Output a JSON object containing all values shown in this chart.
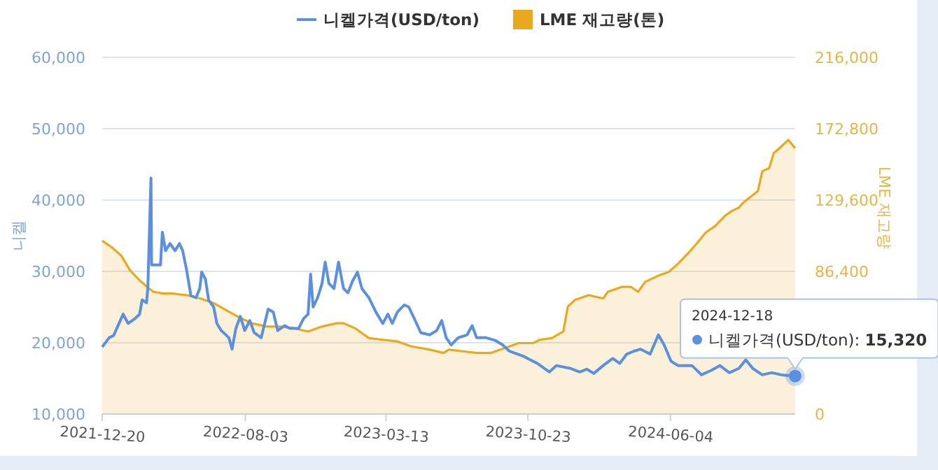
{
  "chart_data": {
    "type": "line",
    "ylabel": "니켈",
    "y2label": "LME 재고량",
    "legend": "top",
    "grid": "y",
    "xlim": [
      "2021-12-20",
      "2024-12-18"
    ],
    "xticks": [
      "2021-12-20",
      "2022-08-03",
      "2023-03-13",
      "2023-10-23",
      "2024-06-04"
    ],
    "ylim": [
      10000,
      60000
    ],
    "yticks": [
      {
        "value": 10000,
        "label": "10,000"
      },
      {
        "value": 20000,
        "label": "20,000"
      },
      {
        "value": 30000,
        "label": "30,000"
      },
      {
        "value": 40000,
        "label": "40,000"
      },
      {
        "value": 50000,
        "label": "50,000"
      },
      {
        "value": 60000,
        "label": "60,000"
      }
    ],
    "y2lim": [
      0,
      216000
    ],
    "y2ticks": [
      0,
      {
        "value": 43200,
        "label": null
      },
      {
        "value": 86400,
        "label": "86,400"
      },
      {
        "value": 129600,
        "label": "129,600"
      },
      {
        "value": 172800,
        "label": "172,800"
      },
      {
        "value": 216000,
        "label": "216,000"
      }
    ],
    "annotations": [
      "2024-12-18",
      {
        "text": "니켈가격(USD/ton): **15,320**",
        "x": "2024-12-18",
        "y": 15320
      }
    ],
    "series": [
      {
        "name": "니켈가격(USD/ton)",
        "color": "#5b8fe0",
        "x": [
          "2021-12-20",
          "2021-12-31",
          "2022-01-07",
          "2022-01-19",
          "2022-01-22",
          "2022-01-30",
          "2022-02-10",
          "2022-02-17",
          "2022-02-21",
          "2022-02-28",
          "2022-03-02",
          "2022-03-07",
          "2022-03-08",
          "2022-03-22",
          "2022-03-25",
          "2022-03-30",
          "2022-04-06",
          "2022-04-14",
          "2022-04-21",
          "2022-04-26",
          "2022-05-02",
          "2022-05-09",
          "2022-05-17",
          "2022-05-23",
          "2022-05-26",
          "2022-06-01",
          "2022-06-06",
          "2022-06-14",
          "2022-06-19",
          "2022-06-26",
          "2022-07-08",
          "2022-07-13",
          "2022-07-19",
          "2022-07-26",
          "2022-08-02",
          "2022-08-10",
          "2022-08-17",
          "2022-08-28",
          "2022-09-08",
          "2022-09-16",
          "2022-09-23",
          "2022-10-04",
          "2022-10-12",
          "2022-10-26",
          "2022-11-03",
          "2022-11-10",
          "2022-11-14",
          "2022-11-18",
          "2022-11-25",
          "2022-12-02",
          "2022-12-07",
          "2022-12-13",
          "2022-12-21",
          "2022-12-28",
          "2023-01-05",
          "2023-01-12",
          "2023-01-19",
          "2023-01-27",
          "2023-02-03",
          "2023-02-14",
          "2023-02-25",
          "2023-03-08",
          "2023-03-16",
          "2023-03-23",
          "2023-03-31",
          "2023-04-11",
          "2023-04-18",
          "2023-04-25",
          "2023-05-07",
          "2023-05-21",
          "2023-06-01",
          "2023-06-09",
          "2023-06-16",
          "2023-06-24",
          "2023-07-05",
          "2023-07-19",
          "2023-07-27",
          "2023-08-03",
          "2023-08-18",
          "2023-09-02",
          "2023-09-13",
          "2023-09-24",
          "2023-10-16",
          "2023-11-07",
          "2023-11-26",
          "2023-12-07",
          "2023-12-29",
          "2024-01-13",
          "2024-01-24",
          "2024-02-04",
          "2024-02-19",
          "2024-03-05",
          "2024-03-16",
          "2024-03-27",
          "2024-04-07",
          "2024-04-18",
          "2024-05-03",
          "2024-05-16",
          "2024-05-25",
          "2024-06-05",
          "2024-06-16",
          "2024-07-08",
          "2024-07-23",
          "2024-08-07",
          "2024-08-21",
          "2024-09-05",
          "2024-09-20",
          "2024-10-01",
          "2024-10-12",
          "2024-10-27",
          "2024-11-11",
          "2024-11-26",
          "2024-12-18"
        ],
        "values": [
          19400,
          20700,
          21000,
          23400,
          24000,
          22700,
          23400,
          24000,
          26000,
          25600,
          27600,
          43100,
          30900,
          30900,
          35500,
          32900,
          33900,
          32900,
          33900,
          32900,
          30300,
          26600,
          26300,
          27600,
          29900,
          28900,
          26000,
          25000,
          22700,
          21700,
          20700,
          19100,
          22000,
          23700,
          21700,
          23100,
          21400,
          20700,
          24700,
          24300,
          21700,
          22400,
          22000,
          22000,
          23400,
          24000,
          29600,
          25000,
          26300,
          28300,
          31300,
          28300,
          27600,
          31300,
          27600,
          27000,
          28600,
          29900,
          27600,
          26300,
          24300,
          22700,
          24000,
          22700,
          24300,
          25300,
          25000,
          23700,
          21400,
          21100,
          21700,
          23100,
          20700,
          19700,
          20700,
          21100,
          22400,
          20700,
          20700,
          20300,
          19700,
          18800,
          18100,
          17100,
          15900,
          16800,
          16400,
          15900,
          16300,
          15700,
          16800,
          17800,
          17100,
          18400,
          18800,
          19100,
          18400,
          21100,
          19700,
          17400,
          16800,
          16800,
          15500,
          16100,
          16800,
          15800,
          16400,
          17600,
          16400,
          15500,
          15800,
          15500,
          15320
        ]
      },
      {
        "name": "LME 재고량(톤)",
        "type": "area",
        "axis": "y2",
        "color": "#e8a91e",
        "x": [
          "2021-12-20",
          "2022-01-04",
          "2022-01-19",
          "2022-02-02",
          "2022-02-17",
          "2022-03-04",
          "2022-03-11",
          "2022-03-26",
          "2022-04-10",
          "2022-05-02",
          "2022-05-24",
          "2022-06-15",
          "2022-07-08",
          "2022-07-22",
          "2022-08-13",
          "2022-09-05",
          "2022-09-27",
          "2022-10-19",
          "2022-11-10",
          "2022-12-02",
          "2022-12-25",
          "2023-01-05",
          "2023-01-23",
          "2023-02-14",
          "2023-03-08",
          "2023-03-31",
          "2023-04-22",
          "2023-05-21",
          "2023-06-12",
          "2023-06-20",
          "2023-07-12",
          "2023-08-03",
          "2023-08-25",
          "2023-09-17",
          "2023-10-09",
          "2023-10-31",
          "2023-11-11",
          "2023-11-30",
          "2023-12-18",
          "2023-12-25",
          "2024-01-05",
          "2024-01-27",
          "2024-02-19",
          "2024-02-26",
          "2024-03-12",
          "2024-03-19",
          "2024-04-03",
          "2024-04-14",
          "2024-04-25",
          "2024-05-17",
          "2024-06-01",
          "2024-06-16",
          "2024-07-01",
          "2024-07-15",
          "2024-07-30",
          "2024-08-14",
          "2024-08-29",
          "2024-09-09",
          "2024-09-20",
          "2024-09-27",
          "2024-10-20",
          "2024-10-27",
          "2024-11-07",
          "2024-11-14",
          "2024-11-26",
          "2024-12-07",
          "2024-12-18"
        ],
        "values": [
          105000,
          101000,
          96000,
          87000,
          81000,
          76000,
          74000,
          73000,
          73000,
          72000,
          70000,
          67000,
          62000,
          59000,
          55000,
          53000,
          53000,
          52000,
          50000,
          53000,
          55000,
          55000,
          52000,
          46000,
          45000,
          44000,
          41000,
          39000,
          37000,
          39000,
          38000,
          37000,
          37000,
          40000,
          43000,
          43000,
          45000,
          46000,
          50000,
          65000,
          69000,
          72000,
          70000,
          74000,
          76000,
          77000,
          77000,
          74000,
          80000,
          84000,
          86000,
          91000,
          97000,
          103000,
          110000,
          114000,
          120000,
          123000,
          125000,
          128000,
          135000,
          147000,
          149000,
          158000,
          162000,
          166000,
          161000
        ]
      }
    ]
  }
}
